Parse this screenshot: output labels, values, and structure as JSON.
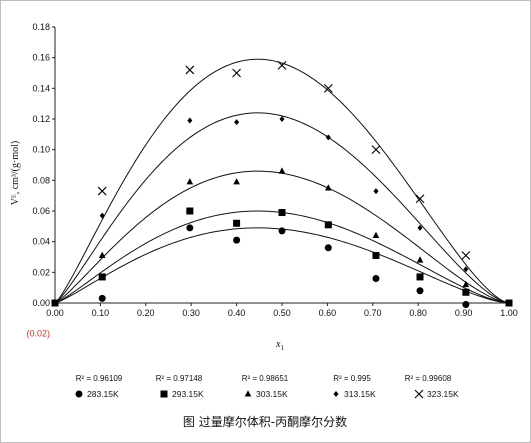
{
  "chart_data": {
    "type": "scatter",
    "title": "",
    "caption": "图 过量摩尔体积-丙酮摩尔分数",
    "xlabel": "x",
    "xlabel_sub": "1",
    "ylabel": "Vᴱ, cm³/(g·mol)",
    "xlim": [
      0,
      1
    ],
    "ylim": [
      -0.02,
      0.18
    ],
    "x_ticks": [
      "0.00",
      "0.10",
      "0.20",
      "0.30",
      "0.40",
      "0.50",
      "0.60",
      "0.70",
      "0.80",
      "0.90",
      "1.00"
    ],
    "y_ticks": [
      "(0.02)",
      "0.00",
      "0.02",
      "0.04",
      "0.06",
      "0.08",
      "0.10",
      "0.12",
      "0.14",
      "0.16",
      "0.18"
    ],
    "grid": false,
    "legend_position": "bottom",
    "r_squared": [
      "R² = 0.96109",
      "R² = 0.97148",
      "R² = 0.98651",
      "R² = 0.995",
      "R² = 0.99608"
    ],
    "series": [
      {
        "name": "283.15K",
        "marker": "circle",
        "points": [
          [
            0,
            0
          ],
          [
            0.104,
            0.003
          ],
          [
            0.297,
            0.049
          ],
          [
            0.4,
            0.041
          ],
          [
            0.5,
            0.047
          ],
          [
            0.602,
            0.036
          ],
          [
            0.707,
            0.016
          ],
          [
            0.804,
            0.008
          ],
          [
            0.905,
            -0.001
          ],
          [
            1.0,
            0.0
          ]
        ],
        "fit_peak": 0.049,
        "fit_peak_x": 0.41
      },
      {
        "name": "293.15K",
        "marker": "square",
        "points": [
          [
            0,
            0
          ],
          [
            0.104,
            0.017
          ],
          [
            0.297,
            0.06
          ],
          [
            0.4,
            0.052
          ],
          [
            0.5,
            0.059
          ],
          [
            0.602,
            0.051
          ],
          [
            0.707,
            0.031
          ],
          [
            0.804,
            0.017
          ],
          [
            0.905,
            0.007
          ],
          [
            1.0,
            0.0
          ]
        ],
        "fit_peak": 0.06,
        "fit_peak_x": 0.41
      },
      {
        "name": "303.15K",
        "marker": "triangle",
        "points": [
          [
            0,
            0
          ],
          [
            0.104,
            0.031
          ],
          [
            0.297,
            0.079
          ],
          [
            0.4,
            0.079
          ],
          [
            0.5,
            0.086
          ],
          [
            0.602,
            0.075
          ],
          [
            0.707,
            0.044
          ],
          [
            0.804,
            0.028
          ],
          [
            0.905,
            0.012
          ],
          [
            1.0,
            0.0
          ]
        ],
        "fit_peak": 0.086,
        "fit_peak_x": 0.42
      },
      {
        "name": "313.15K",
        "marker": "diamond",
        "points": [
          [
            0,
            0
          ],
          [
            0.104,
            0.057
          ],
          [
            0.297,
            0.119
          ],
          [
            0.4,
            0.118
          ],
          [
            0.5,
            0.12
          ],
          [
            0.602,
            0.108
          ],
          [
            0.707,
            0.073
          ],
          [
            0.804,
            0.049
          ],
          [
            0.905,
            0.022
          ],
          [
            1.0,
            0.0
          ]
        ],
        "fit_peak": 0.124,
        "fit_peak_x": 0.42
      },
      {
        "name": "323.15K",
        "marker": "x",
        "points": [
          [
            0,
            0
          ],
          [
            0.104,
            0.073
          ],
          [
            0.297,
            0.152
          ],
          [
            0.4,
            0.15
          ],
          [
            0.5,
            0.155
          ],
          [
            0.602,
            0.14
          ],
          [
            0.707,
            0.1
          ],
          [
            0.804,
            0.068
          ],
          [
            0.905,
            0.031
          ],
          [
            1.0,
            0.0
          ]
        ],
        "fit_peak": 0.159,
        "fit_peak_x": 0.42
      }
    ]
  }
}
